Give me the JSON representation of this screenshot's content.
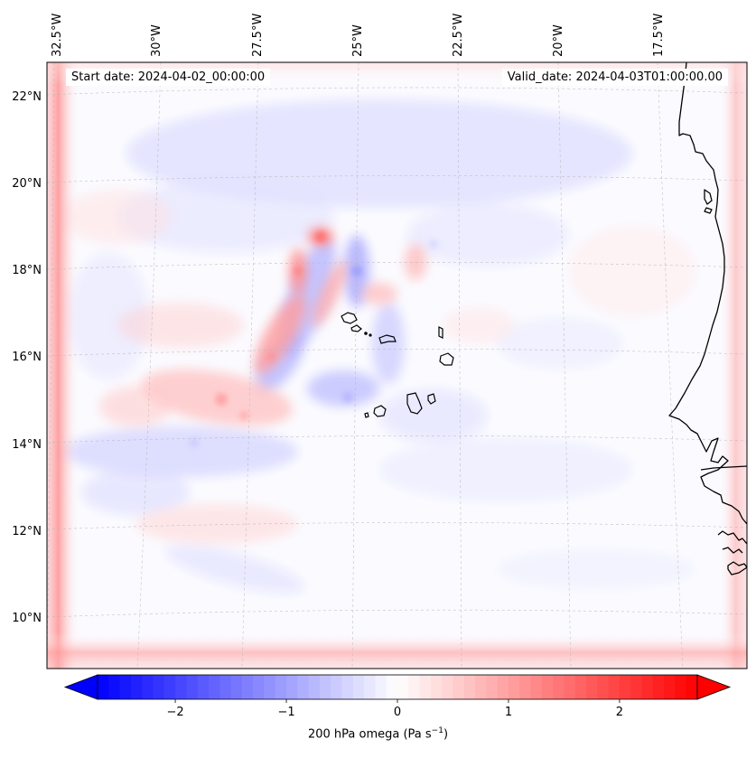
{
  "map": {
    "variable_label": "200 hPa omega (Pa s",
    "unit_exponent": "−1",
    "unit_close": ")",
    "start_date": "Start date: 2024-04-02_00:00:00",
    "valid_date": "Valid_date: 2024-04-03T01:00:00.00",
    "lon_labels": [
      "32.5°W",
      "30°W",
      "27.5°W",
      "25°W",
      "22.5°W",
      "20°W",
      "17.5°W"
    ],
    "lat_labels": [
      "22°N",
      "20°N",
      "18°N",
      "16°N",
      "14°N",
      "12°N",
      "10°N"
    ],
    "lon_extent": [
      "32.5°W",
      "15°W"
    ],
    "lat_extent": [
      "9°N",
      "22.8°N"
    ],
    "projection": "Lambert conformal",
    "gridlines": true,
    "coastline_color": "#000000"
  },
  "colorbar": {
    "ticks": [
      "−2",
      "−1",
      "0",
      "1",
      "2"
    ],
    "range": [
      -2.7,
      2.7
    ],
    "colormap": "bwr",
    "colors": {
      "negative": "#0000ff",
      "zero": "#ffffff",
      "positive": "#ff0000"
    },
    "extend": "both"
  }
}
